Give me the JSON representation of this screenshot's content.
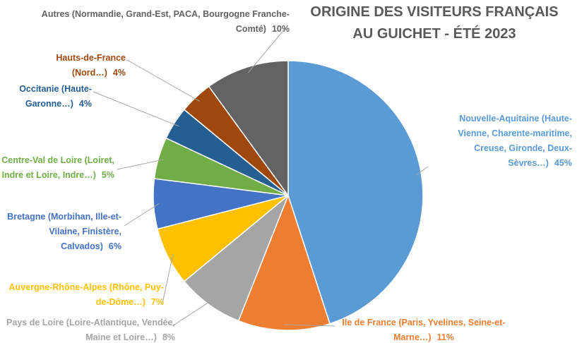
{
  "chart_data": {
    "type": "pie",
    "title": "ORIGINE DES VISITEURS FRANÇAIS AU GUICHET - ÉTÉ 2023",
    "categories": [
      "Nouvelle-Aquitaine (Haute-Vienne, Charente-maritime, Creuse, Gironde, Deux-Sèvres…)",
      "Ile de France (Paris, Yvelines, Seine-et-Marne…)",
      "Pays de Loire (Loire-Atlantique, Vendée, Maine et Loire…)",
      "Auvergne-Rhône-Alpes (Rhône, Puy-de-Dôme…)",
      "Bretagne (Morbihan, Ille-et-Vilaine, Finistère, Calvados)",
      "Centre-Val de Loire (Loiret, Indre et Loire, Indre…)",
      "Occitanie (Haute-Garonne…)",
      "Hauts-de-France (Nord…)",
      "Autres (Normandie, Grand-Est, PACA, Bourgogne Franche-Comté)"
    ],
    "values": [
      45,
      11,
      8,
      7,
      6,
      5,
      4,
      4,
      10
    ],
    "value_labels": [
      "45%",
      "11%",
      "8%",
      "7%",
      "6%",
      "5%",
      "4%",
      "4%",
      "10%"
    ],
    "colors": [
      "#5b9bd5",
      "#ed7d31",
      "#a5a5a5",
      "#ffc000",
      "#4472c4",
      "#70ad47",
      "#255e91",
      "#9e480e",
      "#636363"
    ]
  }
}
